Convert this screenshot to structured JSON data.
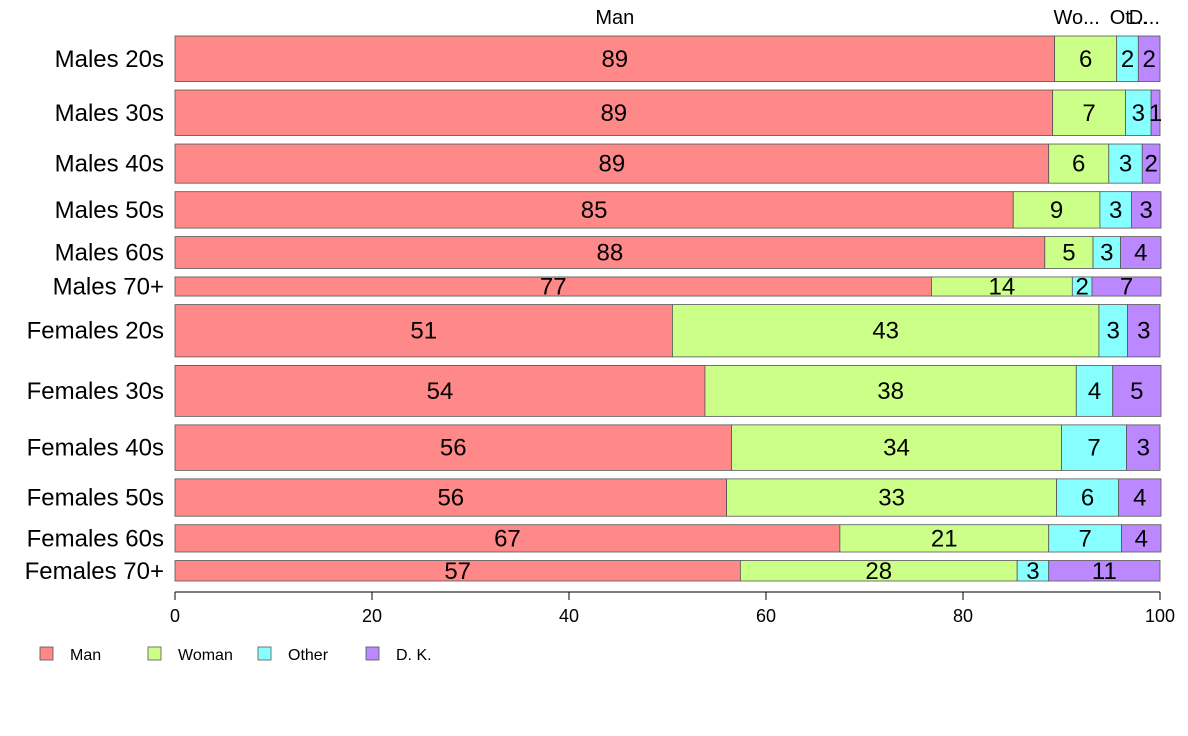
{
  "chart_data": {
    "type": "bar",
    "orientation": "horizontal",
    "stacked": true,
    "categories": [
      "Males 20s",
      "Males 30s",
      "Males 40s",
      "Males 50s",
      "Males 60s",
      "Males 70+",
      "Females 20s",
      "Females 30s",
      "Females 40s",
      "Females 50s",
      "Females 60s",
      "Females 70+"
    ],
    "series": [
      {
        "name": "Man",
        "color": "#ff8888",
        "values": [
          89.3,
          89.1,
          88.7,
          85.1,
          88.3,
          76.8,
          50.5,
          53.8,
          56.5,
          56.0,
          67.5,
          57.4
        ]
      },
      {
        "name": "Woman",
        "color": "#ccff88",
        "values": [
          6.3,
          7.4,
          6.1,
          8.8,
          4.9,
          14.3,
          43.3,
          37.7,
          33.5,
          33.5,
          21.2,
          28.1
        ]
      },
      {
        "name": "Other",
        "color": "#88ffff",
        "values": [
          2.2,
          2.6,
          3.4,
          3.2,
          2.8,
          2.0,
          2.9,
          3.7,
          6.6,
          6.3,
          7.4,
          3.2
        ]
      },
      {
        "name": "D. K.",
        "color": "#bb88ff",
        "values": [
          2.2,
          0.9,
          1.8,
          3.0,
          4.1,
          7.0,
          3.3,
          4.9,
          3.4,
          4.3,
          4.0,
          11.3
        ]
      }
    ],
    "value_labels": [
      [
        "89",
        "6",
        "2",
        "2"
      ],
      [
        "89",
        "7",
        "3",
        "1"
      ],
      [
        "89",
        "6",
        "3",
        "2"
      ],
      [
        "85",
        "9",
        "3",
        "3"
      ],
      [
        "88",
        "5",
        "3",
        "4"
      ],
      [
        "77",
        "14",
        "2",
        "7"
      ],
      [
        "51",
        "43",
        "3",
        "3"
      ],
      [
        "54",
        "38",
        "4",
        "5"
      ],
      [
        "56",
        "34",
        "7",
        "3"
      ],
      [
        "56",
        "33",
        "6",
        "4"
      ],
      [
        "67",
        "21",
        "7",
        "4"
      ],
      [
        "57",
        "28",
        "3",
        "11"
      ]
    ],
    "row_weights": [
      1.0,
      1.0,
      0.86,
      0.8,
      0.7,
      0.42,
      1.15,
      1.12,
      1.0,
      0.82,
      0.6,
      0.45
    ],
    "top_labels": [
      "Man",
      "Wo...",
      "Ot...",
      "D..."
    ],
    "xlim": [
      0,
      100
    ],
    "xticks": [
      "0",
      "20",
      "40",
      "60",
      "80",
      "100"
    ],
    "legend_position": "bottom-left",
    "grid": false,
    "xlabel": "",
    "ylabel": "",
    "title": ""
  }
}
